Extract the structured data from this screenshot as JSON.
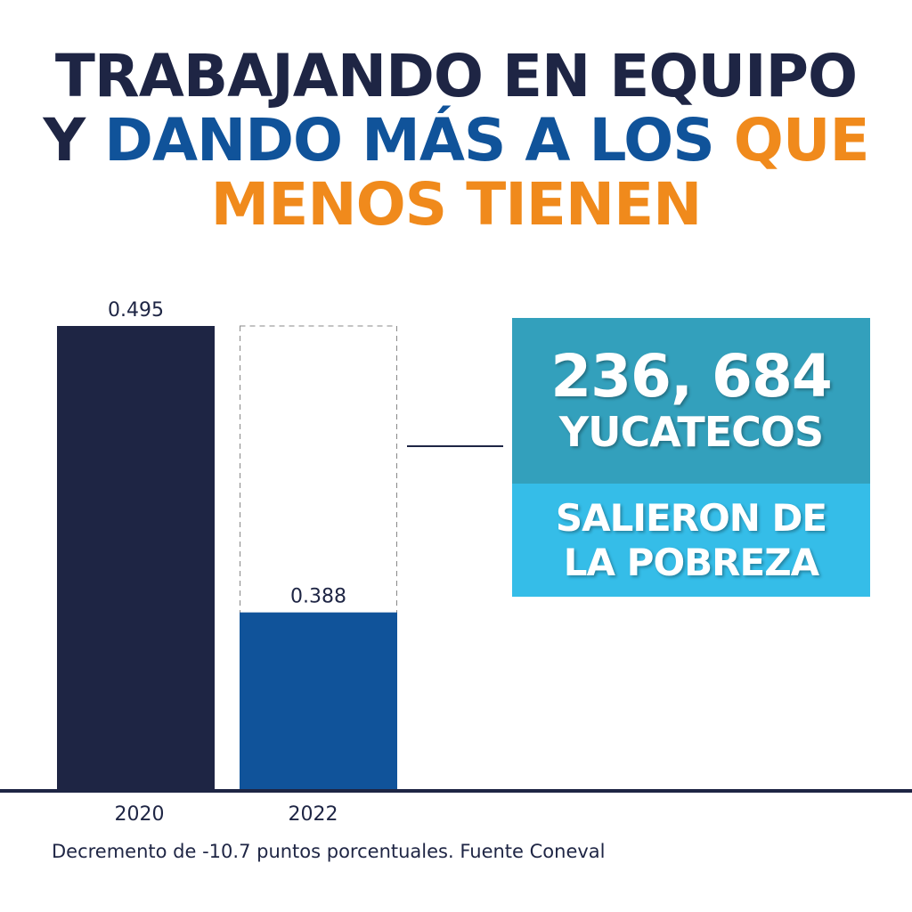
{
  "title": {
    "line1": "TRABAJANDO EN EQUIPO",
    "line2_a": "Y ",
    "line2_b": "DANDO MÁS A LOS ",
    "line2_c": "QUE",
    "line3": "MENOS TIENEN"
  },
  "callout": {
    "number": "236, 684",
    "line2": "YUCATECOS",
    "line3": "SALIERON DE",
    "line4": "LA POBREZA"
  },
  "footnote": "Decremento de -10.7 puntos porcentuales. Fuente Coneval",
  "colors": {
    "navy": "#1e2544",
    "blue": "#10539a",
    "orange": "#f08a1c",
    "teal": "#33a0bc",
    "cyan": "#35bde8"
  },
  "chart_data": {
    "type": "bar",
    "categories": [
      "2020",
      "2022"
    ],
    "values": [
      0.495,
      0.388
    ],
    "data_labels": [
      "0.495",
      "0.388"
    ],
    "bar_colors": [
      "#1e2544",
      "#10539a"
    ],
    "reference_outline": {
      "category": "2022",
      "value": 0.495,
      "style": "dashed"
    },
    "ylim": [
      0.322,
      0.495
    ],
    "grid": false,
    "title": "",
    "xlabel": "",
    "ylabel": ""
  }
}
